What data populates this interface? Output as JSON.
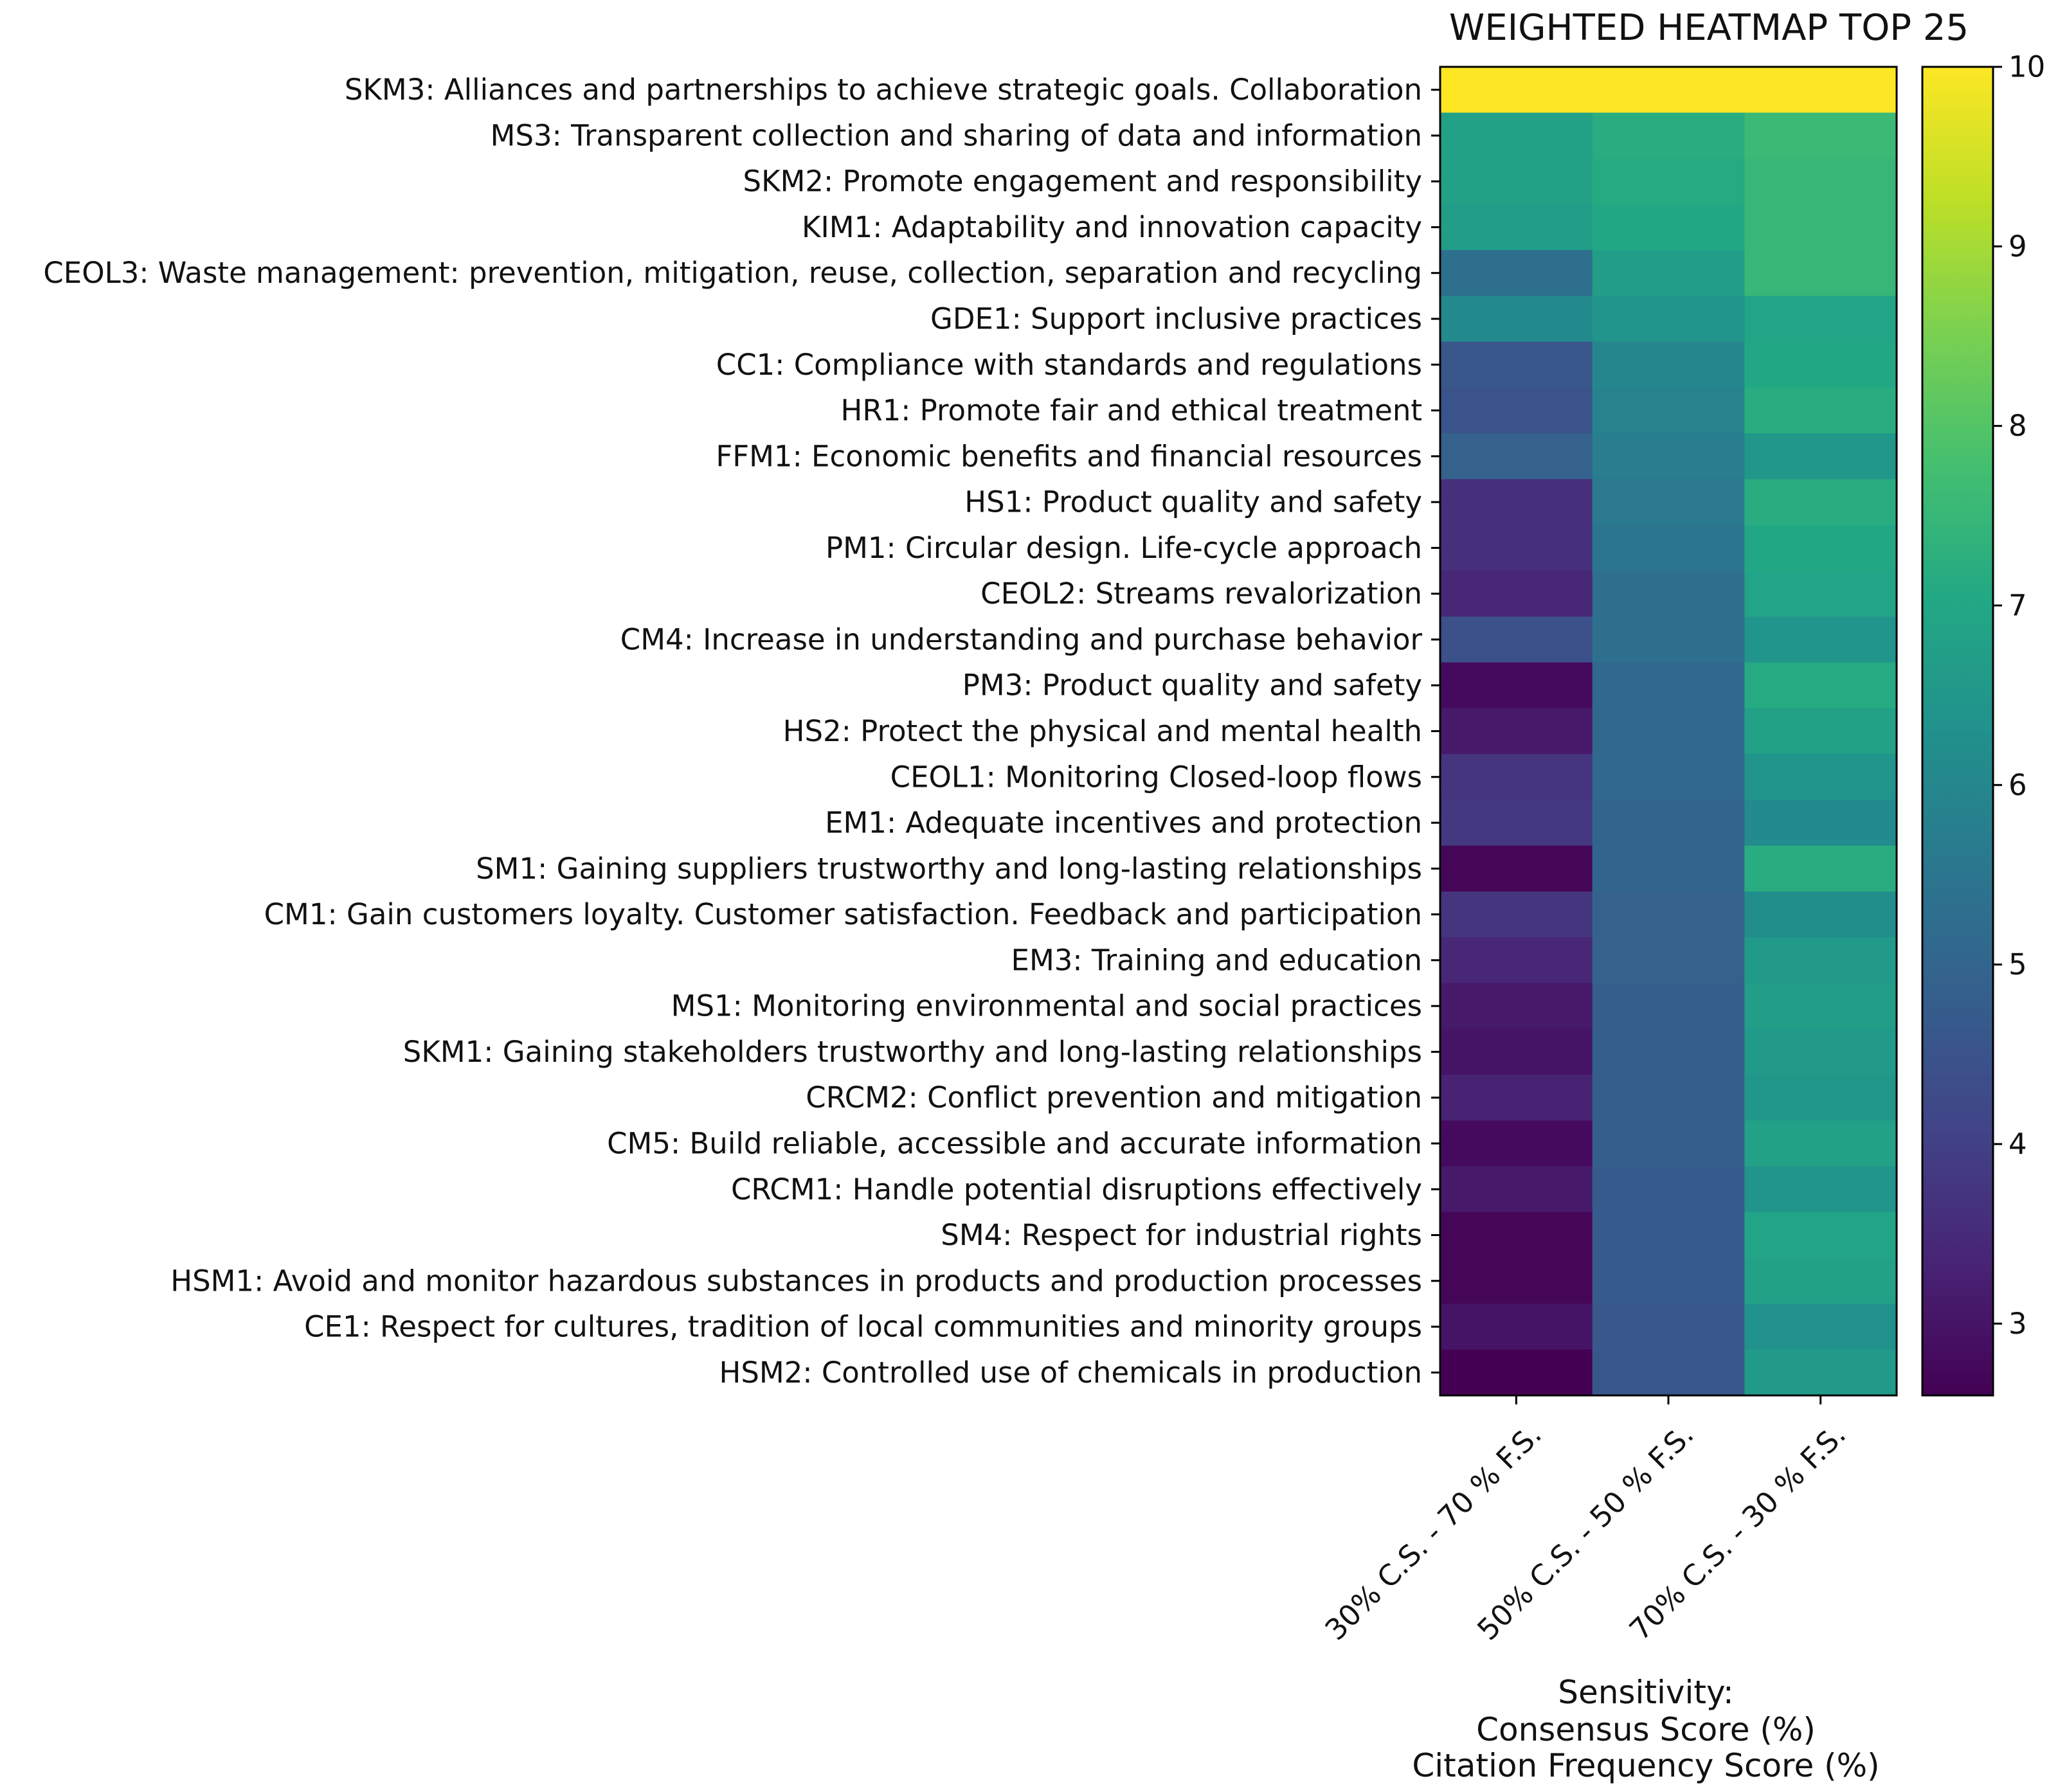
{
  "chart_data": {
    "type": "heatmap",
    "title": "WEIGHTED HEATMAP TOP 25",
    "rows": [
      "SKM3: Alliances and partnerships to achieve strategic goals. Collaboration",
      "MS3: Transparent collection and sharing of data and information",
      "SKM2: Promote engagement and responsibility",
      "KIM1: Adaptability and innovation capacity",
      "CEOL3: Waste management: prevention, mitigation, reuse, collection, separation and recycling",
      "GDE1: Support inclusive practices",
      "CC1: Compliance with standards and regulations",
      "HR1: Promote fair and ethical treatment",
      "FFM1: Economic benefits and financial resources",
      "HS1: Product quality and safety",
      "PM1: Circular design. Life-cycle approach",
      "CEOL2: Streams revalorization",
      "CM4: Increase in understanding and purchase behavior",
      "PM3: Product quality and safety",
      "HS2: Protect the physical and mental health",
      "CEOL1: Monitoring Closed-loop flows",
      "EM1: Adequate incentives and protection",
      "SM1: Gaining suppliers trustworthy and long-lasting relationships",
      "CM1: Gain customers loyalty. Customer satisfaction. Feedback and participation",
      "EM3: Training and education",
      "MS1: Monitoring environmental and social practices",
      "SKM1: Gaining stakeholders trustworthy and long-lasting relationships",
      "CRCM2: Conflict prevention and mitigation",
      "CM5: Build reliable, accessible and accurate information",
      "CRCM1: Handle potential disruptions effectively",
      "SM4: Respect for industrial rights",
      "HSM1: Avoid and monitor hazardous substances in products and production processes",
      "CE1: Respect for cultures, tradition of local communities and minority groups",
      "HSM2: Controlled use of chemicals in production"
    ],
    "columns": [
      "30% C.S. - 70 % F.S.",
      "50% C.S. - 50 % F.S.",
      "70% C.S. - 30 % F.S."
    ],
    "values": [
      [
        10.0,
        10.0,
        10.0
      ],
      [
        6.8,
        7.2,
        7.6
      ],
      [
        6.8,
        7.1,
        7.5
      ],
      [
        6.7,
        7.0,
        7.5
      ],
      [
        5.3,
        6.7,
        7.5
      ],
      [
        6.1,
        6.4,
        6.9
      ],
      [
        4.6,
        6.0,
        7.0
      ],
      [
        4.5,
        5.9,
        7.2
      ],
      [
        4.9,
        5.7,
        6.5
      ],
      [
        3.6,
        5.6,
        7.2
      ],
      [
        3.6,
        5.5,
        7.0
      ],
      [
        3.4,
        5.3,
        6.9
      ],
      [
        4.4,
        5.3,
        6.4
      ],
      [
        2.8,
        5.1,
        7.1
      ],
      [
        3.1,
        5.1,
        6.8
      ],
      [
        3.7,
        5.1,
        6.4
      ],
      [
        3.8,
        5.0,
        6.1
      ],
      [
        2.7,
        5.0,
        7.2
      ],
      [
        3.7,
        4.9,
        6.2
      ],
      [
        3.4,
        4.9,
        6.6
      ],
      [
        3.1,
        4.8,
        6.7
      ],
      [
        3.0,
        4.8,
        6.6
      ],
      [
        3.3,
        4.8,
        6.5
      ],
      [
        2.8,
        4.8,
        6.8
      ],
      [
        3.1,
        4.7,
        6.4
      ],
      [
        2.7,
        4.7,
        6.9
      ],
      [
        2.7,
        4.7,
        6.8
      ],
      [
        3.0,
        4.6,
        6.3
      ],
      [
        2.6,
        4.6,
        6.6
      ]
    ],
    "colormap": "viridis",
    "colorbar": {
      "vmin": 2.6,
      "vmax": 10,
      "ticks": [
        3,
        4,
        5,
        6,
        7,
        8,
        9,
        10
      ]
    },
    "xlabel_lines": [
      "Sensitivity:",
      "Consensus Score (%)",
      "Citation Frequency Score (%)"
    ],
    "ylabel": ""
  }
}
